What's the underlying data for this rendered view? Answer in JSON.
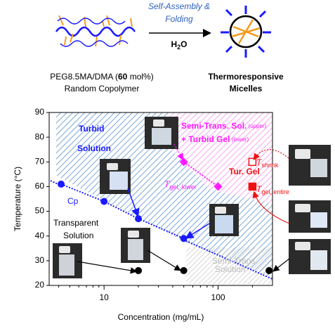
{
  "header": {
    "arrow_top": [
      "Self-Assembly &",
      "Folding"
    ],
    "arrow_bottom": [
      "H",
      "2",
      "O"
    ],
    "left_caption": [
      [
        "PEG8.5MA/DMA (",
        "60",
        " mol%)"
      ],
      "Random Copolymer"
    ],
    "right_caption": [
      "Thermoresponsive",
      "Micelles"
    ]
  },
  "chart_data": {
    "type": "scatter",
    "x_label": "Concentration (mg/mL)",
    "y_label": "Temperature (°C)",
    "xlim": [
      3.3,
      300
    ],
    "ylim": [
      20,
      90
    ],
    "log_x": true,
    "xticks": [
      10,
      100
    ],
    "xminorticks": [
      4,
      5,
      6,
      7,
      8,
      9,
      20,
      30,
      40,
      50,
      60,
      70,
      80,
      90,
      200
    ],
    "yticks": [
      20,
      30,
      40,
      50,
      60,
      70,
      80,
      90
    ],
    "series": [
      {
        "name": "Cp",
        "color": "#1a1aff",
        "marker": "circle",
        "line": true,
        "x": [
          4.2,
          10,
          20,
          50
        ],
        "values": [
          61,
          54,
          47,
          39
        ]
      },
      {
        "color": "#000000",
        "marker": "circle",
        "x": [
          20,
          50,
          280
        ],
        "values": [
          26,
          26,
          26
        ]
      },
      {
        "color": "#ff1aff",
        "marker": "diamond",
        "line": true,
        "x": [
          50,
          100
        ],
        "values": [
          70,
          60
        ],
        "label": [
          "T",
          "gel, lower"
        ]
      },
      {
        "color": "#ee1111",
        "marker": "open-square",
        "x": [
          200
        ],
        "values": [
          70
        ],
        "label": [
          "T",
          "shrink"
        ]
      },
      {
        "color": "#ee1111",
        "marker": "square",
        "x": [
          200
        ],
        "values": [
          60
        ],
        "label": [
          "T",
          "gel, entire"
        ]
      }
    ],
    "annotations": {
      "turbid": [
        "Turbid",
        "Solution"
      ],
      "transparent": [
        "Transparent",
        "Solution"
      ],
      "semi_gel": [
        [
          "Semi-Trans. Sol.",
          " (upper)"
        ],
        [
          "+ Turbid Gel",
          " (lower)"
        ]
      ],
      "tur_gel": "Tur. Gel",
      "semi_sol": [
        "Semi-Trans.",
        "Solution"
      ]
    }
  }
}
